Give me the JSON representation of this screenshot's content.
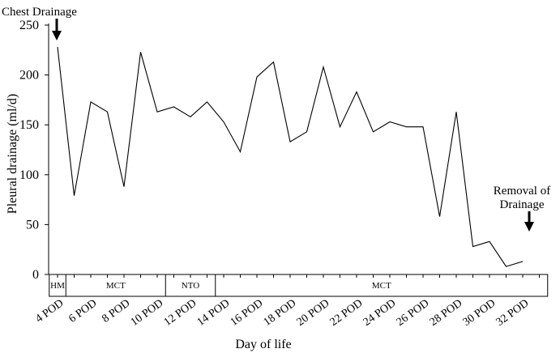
{
  "chart_data": {
    "type": "line",
    "xlabel": "Day of life",
    "ylabel": "Pleural drainage (ml/d)",
    "ylim": [
      0,
      250
    ],
    "yticks": [
      0,
      50,
      100,
      150,
      200,
      250
    ],
    "grid": false,
    "xtick_labels": [
      "4 POD",
      "6 POD",
      "8 POD",
      "10 POD",
      "12 POD",
      "14 POD",
      "16 POD",
      "18 POD",
      "20 POD",
      "22 POD",
      "24 POD",
      "26 POD",
      "28 POD",
      "30 POD",
      "32 POD"
    ],
    "series": [
      {
        "color": "#000000",
        "x": [
          4,
          5,
          6,
          7,
          8,
          9,
          10,
          11,
          12,
          13,
          14,
          15,
          16,
          17,
          18,
          19,
          20,
          21,
          22,
          23,
          24,
          25,
          26,
          27,
          28,
          29,
          30,
          31,
          32,
          33
        ],
        "values": [
          228,
          79,
          173,
          163,
          88,
          223,
          163,
          168,
          158,
          173,
          153,
          123,
          198,
          213,
          133,
          143,
          208,
          148,
          183,
          143,
          153,
          148,
          148,
          58,
          163,
          28,
          33,
          8,
          13,
          null
        ]
      }
    ],
    "bands": [
      {
        "label": "HM",
        "start": 3.5,
        "end": 4.5
      },
      {
        "label": "MCT",
        "start": 4.5,
        "end": 10.5
      },
      {
        "label": "NTO",
        "start": 10.5,
        "end": 13.5
      },
      {
        "label": "MCT",
        "start": 13.5,
        "end": 33.5
      }
    ],
    "annotations": [
      {
        "text_lines": [
          "Chest Drainage"
        ],
        "x": 4
      },
      {
        "text_lines": [
          "Removal of",
          "Drainage"
        ],
        "x": 33
      }
    ]
  }
}
